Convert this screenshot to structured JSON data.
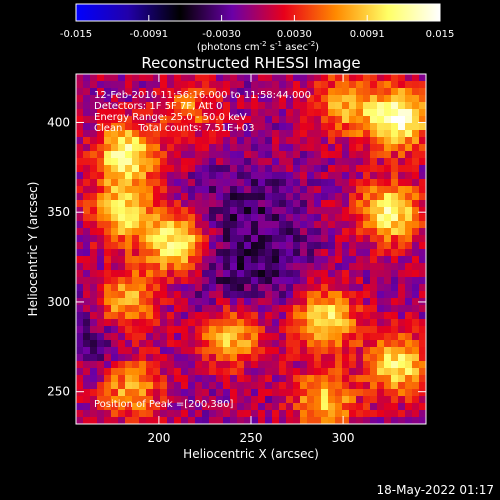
{
  "chart_data": {
    "type": "heatmap",
    "title": "Reconstructed RHESSI Image",
    "xlabel": "Heliocentric X (arcsec)",
    "ylabel": "Heliocentric Y (arcsec)",
    "xlim": [
      155,
      345
    ],
    "ylim": [
      232,
      427
    ],
    "x_ticks": [
      200,
      250,
      300
    ],
    "y_ticks": [
      250,
      300,
      350,
      400
    ],
    "colorbar": {
      "ticks": [
        "-0.015",
        "-0.0091",
        "-0.0030",
        "0.0030",
        "0.0091",
        "0.015"
      ],
      "units": "(photons cm",
      "units_exp1": "-2",
      "units_mid": " s",
      "units_exp2": "-1",
      "units_mid2": " asec",
      "units_exp3": "-2",
      "units_end": ")",
      "range": [
        -0.015,
        0.015
      ],
      "colormap": [
        "#0000ff",
        "#2200aa",
        "#000000",
        "#6a00a8",
        "#e8001a",
        "#ff8a00",
        "#ffff66",
        "#ffffff"
      ]
    },
    "annotations": [
      "12-Feb-2010 11:56:16.000 to 11:58:44.000",
      "Detectors: 1F 5F 7F, Att 0",
      "Energy Range: 25.0 - 50.0 keV",
      "Clean     Total counts: 7.51E+03"
    ],
    "peak_label": "Position of Peak =[200,380]",
    "sources": [
      {
        "x": 210,
        "y": 333,
        "value": 0.013
      },
      {
        "x": 182,
        "y": 382,
        "value": 0.012
      },
      {
        "x": 330,
        "y": 402,
        "value": 0.014
      },
      {
        "x": 325,
        "y": 350,
        "value": 0.012
      },
      {
        "x": 180,
        "y": 350,
        "value": 0.01
      },
      {
        "x": 180,
        "y": 300,
        "value": 0.011
      },
      {
        "x": 240,
        "y": 282,
        "value": 0.01
      },
      {
        "x": 290,
        "y": 290,
        "value": 0.011
      },
      {
        "x": 290,
        "y": 245,
        "value": 0.009
      },
      {
        "x": 185,
        "y": 252,
        "value": 0.008
      },
      {
        "x": 330,
        "y": 265,
        "value": 0.011
      },
      {
        "x": 215,
        "y": 408,
        "value": 0.006
      },
      {
        "x": 300,
        "y": 410,
        "value": 0.008
      }
    ]
  },
  "footer": {
    "date": "18-May-2022 01:17"
  }
}
